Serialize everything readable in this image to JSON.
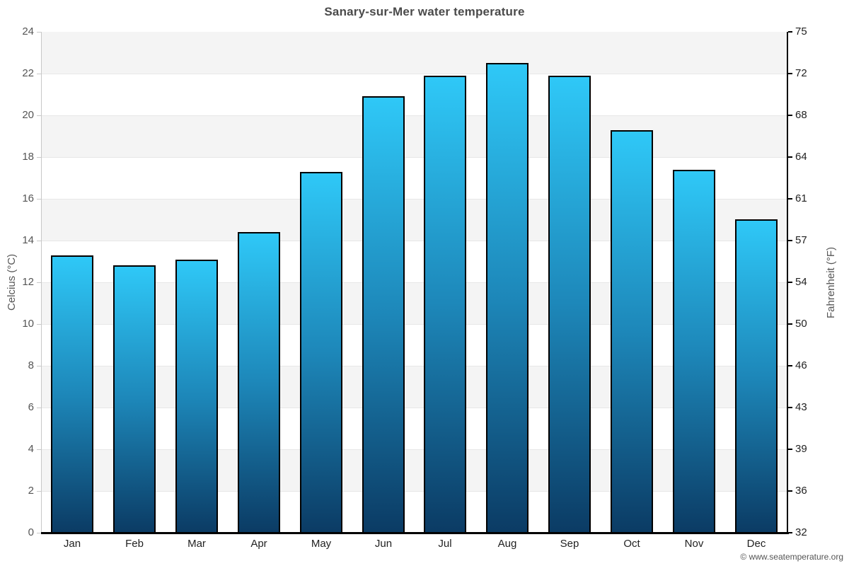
{
  "title": "Sanary-sur-Mer water temperature",
  "copyright": "© www.seatemperature.org",
  "chart_data": {
    "type": "bar",
    "title": "Sanary-sur-Mer water temperature",
    "categories": [
      "Jan",
      "Feb",
      "Mar",
      "Apr",
      "May",
      "Jun",
      "Jul",
      "Aug",
      "Sep",
      "Oct",
      "Nov",
      "Dec"
    ],
    "values": [
      13.3,
      12.8,
      13.1,
      14.4,
      17.3,
      20.9,
      21.9,
      22.5,
      21.9,
      19.3,
      17.4,
      15.0
    ],
    "ylabel_left": "Celcius (°C)",
    "ylabel_right": "Fahrenheit (°F)",
    "ylim_left": [
      0,
      24
    ],
    "yticks_left": [
      0,
      2,
      4,
      6,
      8,
      10,
      12,
      14,
      16,
      18,
      20,
      22,
      24
    ],
    "yticks_right_labels": [
      "32",
      "36",
      "39",
      "43",
      "46",
      "50",
      "54",
      "57",
      "61",
      "64",
      "68",
      "72",
      "75"
    ],
    "grid": "alternating horizontal bands, gray on even 2-degree pairs (2-4, 6-8, ... 22-24)",
    "legend": "none",
    "xlabel": ""
  },
  "colors": {
    "bar_gradient_top": "#2fc8f7",
    "bar_gradient_mid": "#1d87b9",
    "bar_gradient_bottom": "#0b3b64",
    "bar_border": "#000000",
    "band_gray": "#f4f4f4",
    "band_white": "#ffffff",
    "gridline": "#e7e7e7",
    "title_text": "#4a4a4a",
    "left_axis_text": "#555555",
    "right_axis_text": "#222222",
    "month_text": "#222222",
    "left_axis_line": "#c8c8c8",
    "right_axis_line": "#000000",
    "bottom_axis_line": "#000000",
    "copyright_text": "#555555"
  }
}
